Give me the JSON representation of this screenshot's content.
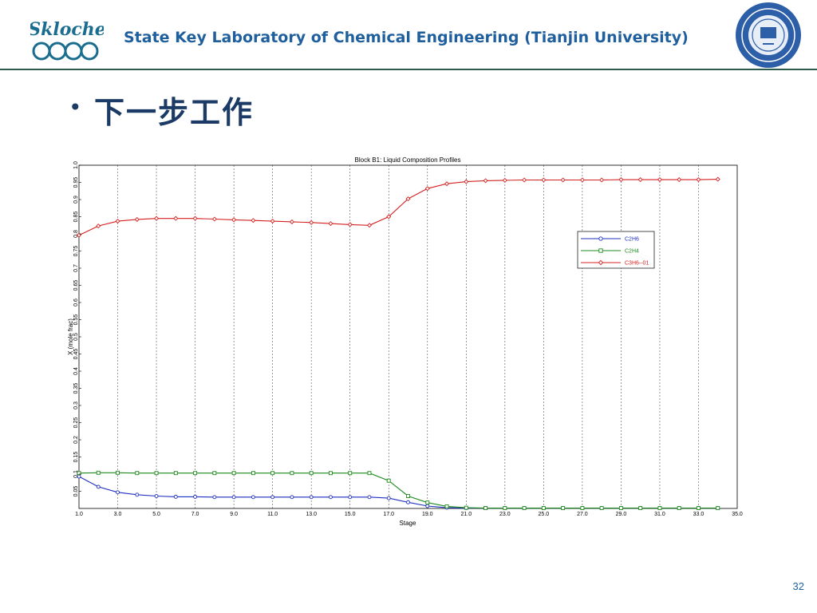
{
  "header": {
    "logo_text": "Skloche",
    "lab_title": "State Key Laboratory of Chemical Engineering (Tianjin University)"
  },
  "slide": {
    "heading": "下一步工作",
    "page_number": "32"
  },
  "colors": {
    "title": "#1f5f9e",
    "heading": "#1b3b66",
    "rule": "#2c5b4b",
    "c2h6": "#1f2fbf",
    "c2h4": "#1e8a1e",
    "c3h6": "#d42020"
  },
  "chart_data": {
    "type": "line",
    "title": "Block B1: Liquid Composition Profiles",
    "xlabel": "Stage",
    "ylabel": "X (mole frac)",
    "xlim": [
      1,
      35
    ],
    "ylim": [
      0,
      1
    ],
    "x_ticks": [
      "1.0",
      "3.0",
      "5.0",
      "7.0",
      "9.0",
      "11.0",
      "13.0",
      "15.0",
      "17.0",
      "19.0",
      "21.0",
      "23.0",
      "25.0",
      "27.0",
      "29.0",
      "31.0",
      "33.0",
      "35.0"
    ],
    "y_ticks": [
      "0.05",
      "0.1",
      "0.15",
      "0.2",
      "0.25",
      "0.3",
      "0.35",
      "0.4",
      "0.45",
      "0.5",
      "0.55",
      "0.6",
      "0.65",
      "0.7",
      "0.75",
      "0.8",
      "0.85",
      "0.9",
      "0.95",
      "1.0"
    ],
    "grid": "vertical dashed",
    "legend_position": "right",
    "x": [
      1,
      2,
      3,
      4,
      5,
      6,
      7,
      8,
      9,
      10,
      11,
      12,
      13,
      14,
      15,
      16,
      17,
      18,
      19,
      20,
      21,
      22,
      23,
      24,
      25,
      26,
      27,
      28,
      29,
      30,
      31,
      32,
      33,
      34
    ],
    "series": [
      {
        "name": "C2H6",
        "color": "#1f2fbf",
        "marker": "circle",
        "values": [
          0.093,
          0.063,
          0.047,
          0.04,
          0.036,
          0.034,
          0.034,
          0.033,
          0.033,
          0.033,
          0.033,
          0.033,
          0.033,
          0.033,
          0.033,
          0.033,
          0.03,
          0.018,
          0.007,
          0.002,
          0.001,
          0.001,
          0.001,
          0.001,
          0.001,
          0.001,
          0.001,
          0.001,
          0.001,
          0.001,
          0.001,
          0.001,
          0.001,
          0.001
        ]
      },
      {
        "name": "C2H4",
        "color": "#1e8a1e",
        "marker": "square",
        "values": [
          0.103,
          0.104,
          0.104,
          0.103,
          0.103,
          0.103,
          0.103,
          0.103,
          0.103,
          0.103,
          0.103,
          0.103,
          0.103,
          0.103,
          0.103,
          0.103,
          0.081,
          0.036,
          0.017,
          0.006,
          0.002,
          0.001,
          0.001,
          0.001,
          0.001,
          0.001,
          0.001,
          0.001,
          0.001,
          0.001,
          0.001,
          0.001,
          0.001,
          0.001
        ]
      },
      {
        "name": "C3H6--01",
        "color": "#d42020",
        "marker": "diamond",
        "values": [
          0.796,
          0.823,
          0.837,
          0.842,
          0.845,
          0.845,
          0.845,
          0.843,
          0.841,
          0.839,
          0.837,
          0.835,
          0.833,
          0.83,
          0.827,
          0.825,
          0.85,
          0.902,
          0.932,
          0.946,
          0.952,
          0.955,
          0.956,
          0.957,
          0.957,
          0.957,
          0.957,
          0.957,
          0.958,
          0.958,
          0.958,
          0.958,
          0.958,
          0.959
        ]
      }
    ]
  }
}
